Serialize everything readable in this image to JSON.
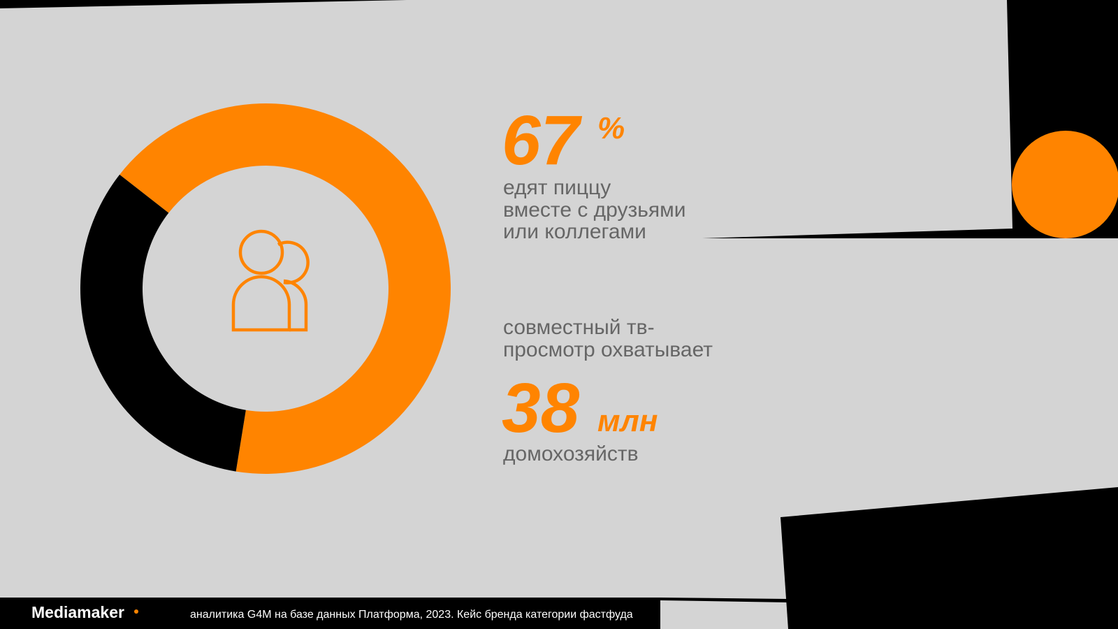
{
  "chart_data": {
    "type": "pie",
    "values": [
      67,
      33
    ],
    "colors": [
      "#ff8400",
      "#000000"
    ],
    "start_angle": -52
  },
  "headline": {
    "unit": "%",
    "caption": [
      "едят пиццу",
      "вместе с друзьями",
      "или коллегами"
    ]
  },
  "second": {
    "intro": [
      "совместный тв-",
      "просмотр охватывает"
    ],
    "value": "38",
    "unit": "млн",
    "caption": "домохозяйств"
  },
  "footer": {
    "brand": "Mediamaker",
    "source": "аналитика G4M на базе данных Платформа, 2023. Кейс бренда категории фастфуда"
  }
}
